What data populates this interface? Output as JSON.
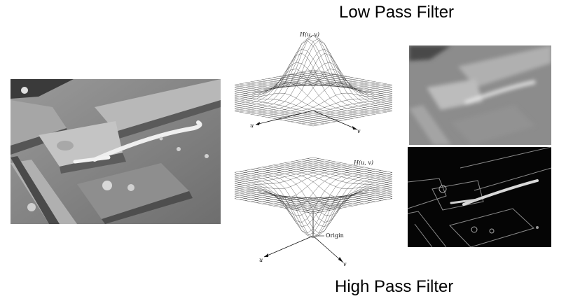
{
  "titles": {
    "low_pass": "Low Pass Filter",
    "high_pass": "High Pass Filter"
  },
  "plot_low": {
    "z_label": "H(u, v)",
    "u_label": "u",
    "v_label": "v"
  },
  "plot_high": {
    "z_label": "H(u, v)",
    "u_label": "u",
    "v_label": "v",
    "origin_label": "Origin"
  },
  "colors": {
    "background": "#ffffff",
    "mesh": "#222222",
    "highpass_background": "#050505"
  }
}
